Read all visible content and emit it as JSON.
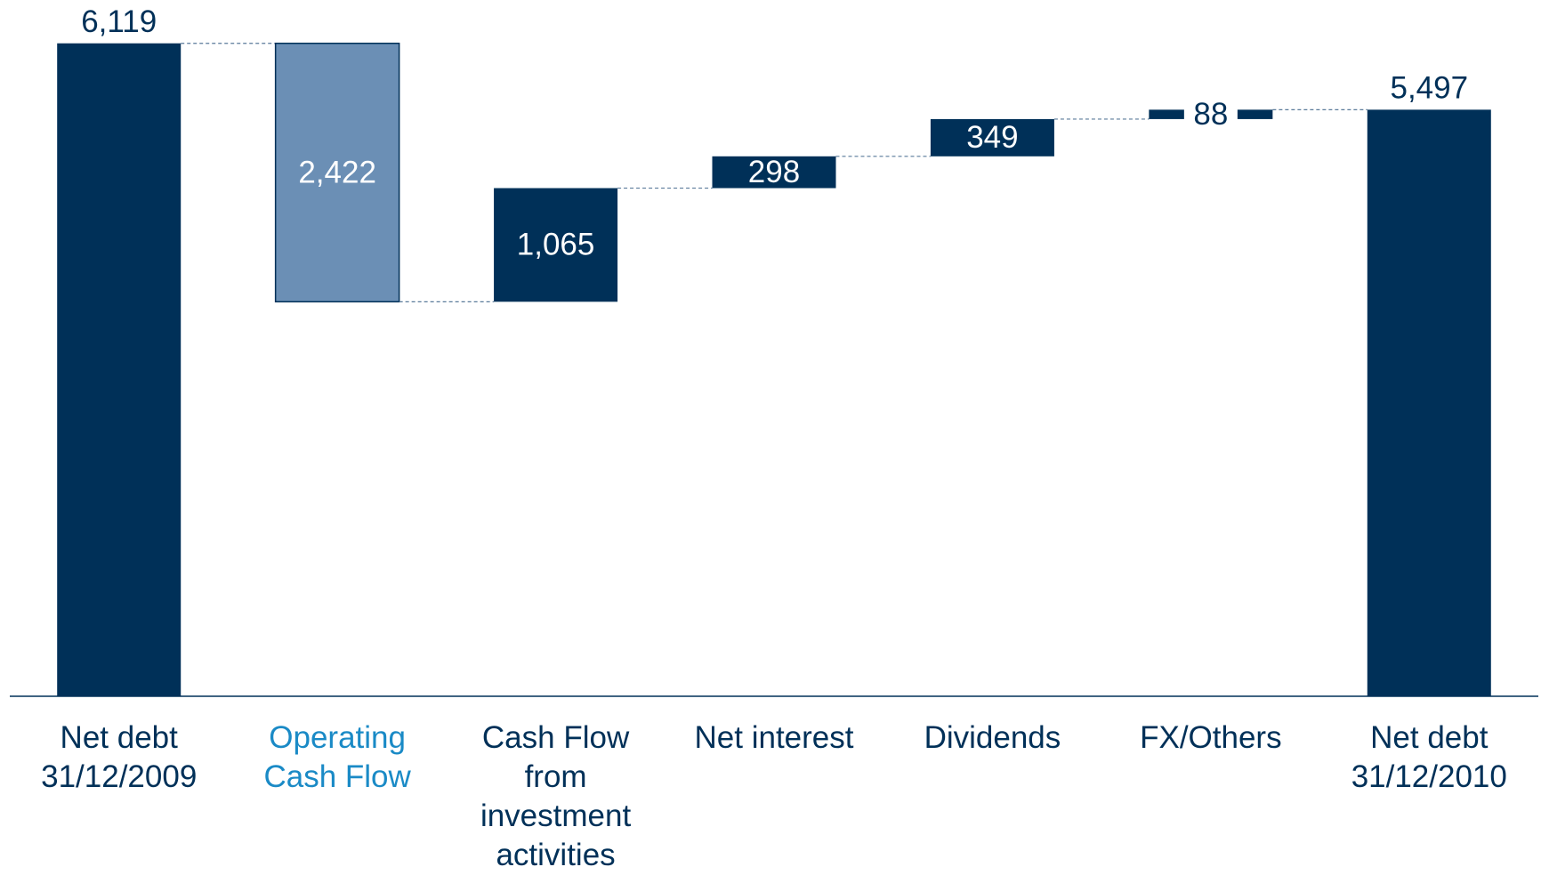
{
  "chart_data": {
    "type": "waterfall",
    "categories": [
      "Net debt 31/12/2009",
      "Operating Cash Flow",
      "Cash Flow from investment activities",
      "Net interest",
      "Dividends",
      "FX/Others",
      "Net debt 31/12/2010"
    ],
    "values": [
      6119,
      -2422,
      1065,
      298,
      349,
      88,
      5497
    ],
    "value_labels": [
      "6,119",
      "2,422",
      "1,065",
      "298",
      "349",
      "88",
      "5,497"
    ],
    "colors": [
      "#003058",
      "#6b8fb5",
      "#003058",
      "#003058",
      "#003058",
      "#003058",
      "#003058"
    ],
    "category_label_colors": [
      "#003058",
      "#1a8ac6",
      "#003058",
      "#003058",
      "#003058",
      "#003058",
      "#003058"
    ],
    "ylim": [
      0,
      6500
    ]
  }
}
